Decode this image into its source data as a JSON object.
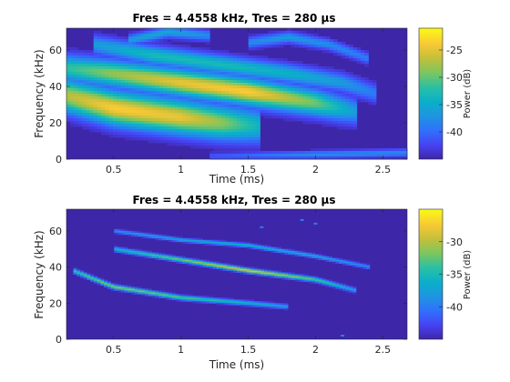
{
  "colors": {
    "parula": [
      "#3e26a8",
      "#4743f4",
      "#2f71fb",
      "#1f95e0",
      "#0ab0c9",
      "#2bc0a3",
      "#7cc65f",
      "#c3bf3b",
      "#f8c935",
      "#f9fb15"
    ]
  },
  "chart_data": [
    {
      "type": "heatmap",
      "title": "Fres = 4.4558 kHz, Tres = 280 µs",
      "xlabel": "Time (ms)",
      "ylabel": "Frequency (kHz)",
      "xlim": [
        0.15,
        2.68
      ],
      "ylim": [
        0,
        72
      ],
      "xticks": [
        "0.5",
        "1",
        "1.5",
        "2",
        "2.5"
      ],
      "xtick_values": [
        0.5,
        1,
        1.5,
        2,
        2.5
      ],
      "yticks": [
        "0",
        "20",
        "40",
        "60"
      ],
      "ytick_values": [
        0,
        20,
        40,
        60
      ],
      "colorbar": {
        "label": "Power (dB)",
        "ticks": [
          "-25",
          "-30",
          "-35",
          "-40"
        ],
        "tick_values": [
          -25,
          -30,
          -35,
          -40
        ],
        "range": [
          -45,
          -21
        ]
      },
      "components": [
        {
          "x": [
            0.15,
            0.5,
            1.0,
            1.3,
            1.6
          ],
          "y": [
            35,
            28,
            23,
            20,
            18
          ],
          "intensity": [
            0.75,
            0.9,
            0.85,
            0.7,
            0.45
          ],
          "thickness": 9
        },
        {
          "x": [
            0.15,
            0.5,
            1.0,
            1.5,
            2.0,
            2.3
          ],
          "y": [
            50,
            47,
            42,
            37,
            31,
            26
          ],
          "intensity": [
            0.55,
            0.7,
            0.85,
            0.9,
            0.65,
            0.35
          ],
          "thickness": 7
        },
        {
          "x": [
            0.35,
            0.8,
            1.3,
            1.8,
            2.2,
            2.45
          ],
          "y": [
            63,
            57,
            52,
            47,
            42,
            36
          ],
          "intensity": [
            0.35,
            0.5,
            0.5,
            0.45,
            0.35,
            0.25
          ],
          "thickness": 5
        },
        {
          "x": [
            0.6,
            0.9,
            1.2
          ],
          "y": [
            65,
            70,
            68
          ],
          "intensity": [
            0.35,
            0.4,
            0.3
          ],
          "thickness": 3
        },
        {
          "x": [
            1.5,
            1.8,
            2.1,
            2.4
          ],
          "y": [
            64,
            67,
            63,
            55
          ],
          "intensity": [
            0.3,
            0.35,
            0.3,
            0.25
          ],
          "thickness": 3
        },
        {
          "x": [
            1.2,
            2.0,
            2.68
          ],
          "y": [
            1.5,
            2.5,
            3.5
          ],
          "intensity": [
            0.15,
            0.3,
            0.3
          ],
          "thickness": 2
        }
      ]
    },
    {
      "type": "heatmap",
      "title": "Fres = 4.4558 kHz, Tres = 280 µs",
      "xlabel": "Time (ms)",
      "ylabel": "Frequency (kHz)",
      "xlim": [
        0.15,
        2.68
      ],
      "ylim": [
        0,
        72
      ],
      "xticks": [
        "0.5",
        "1",
        "1.5",
        "2",
        "2.5"
      ],
      "xtick_values": [
        0.5,
        1,
        1.5,
        2,
        2.5
      ],
      "yticks": [
        "0",
        "20",
        "40",
        "60"
      ],
      "ytick_values": [
        0,
        20,
        40,
        60
      ],
      "colorbar": {
        "label": "Power (dB)",
        "ticks": [
          "-30",
          "-35",
          "-40"
        ],
        "tick_values": [
          -30,
          -35,
          -40
        ],
        "range": [
          -45,
          -25
        ]
      },
      "components": [
        {
          "x": [
            0.2,
            0.5,
            1.0,
            1.5,
            1.8
          ],
          "y": [
            38,
            29,
            23,
            20,
            18
          ],
          "intensity": [
            0.55,
            0.7,
            0.6,
            0.45,
            0.35
          ],
          "thickness": 1.2
        },
        {
          "x": [
            0.5,
            1.0,
            1.5,
            2.0,
            2.3
          ],
          "y": [
            50,
            44,
            38,
            33,
            27
          ],
          "intensity": [
            0.45,
            0.65,
            0.85,
            0.6,
            0.35
          ],
          "thickness": 1.2
        },
        {
          "x": [
            0.5,
            1.0,
            1.5,
            2.0,
            2.4
          ],
          "y": [
            60,
            55,
            52,
            46,
            40
          ],
          "intensity": [
            0.3,
            0.4,
            0.45,
            0.4,
            0.3
          ],
          "thickness": 1.0
        }
      ],
      "dots": [
        [
          1.6,
          62
        ],
        [
          2.0,
          64
        ],
        [
          2.2,
          2
        ],
        [
          1.9,
          66
        ]
      ]
    }
  ]
}
